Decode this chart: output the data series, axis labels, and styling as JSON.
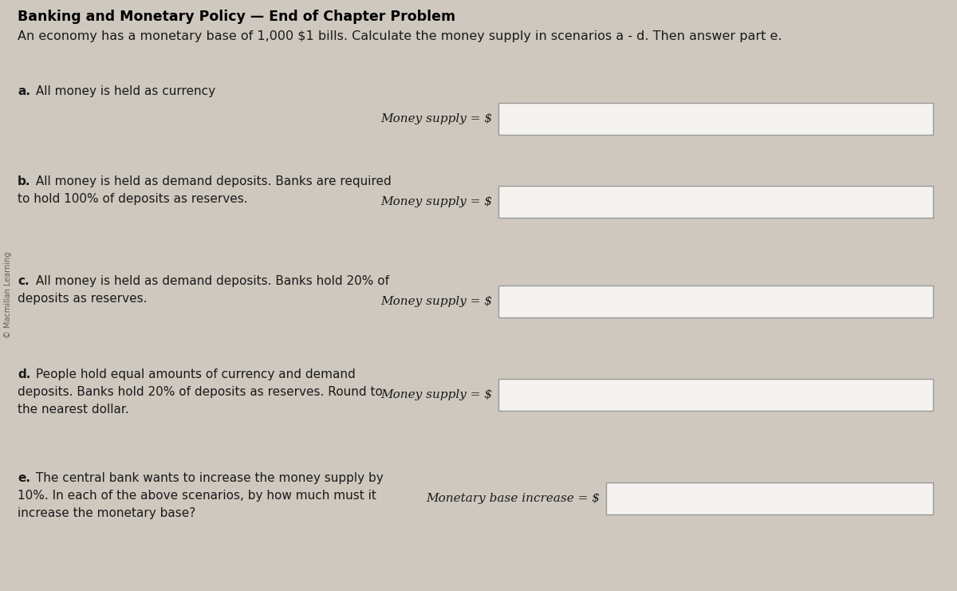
{
  "title": "Banking and Monetary Policy — End of Chapter Problem",
  "intro": "An economy has a monetary base of 1,000 $1 bills. Calculate the money supply in scenarios a - d. Then answer part e.",
  "bg_color": "#cec8bf",
  "section_a_label": "a.",
  "section_a_text": " All money is held as currency",
  "section_a_answer_label": "Money supply = $",
  "section_b_label": "b.",
  "section_b_line1": " All money is held as demand deposits. Banks are required",
  "section_b_line2": "to hold 100% of deposits as reserves.",
  "section_b_answer_label": "Money supply = $",
  "section_c_label": "c.",
  "section_c_line1": " All money is held as demand deposits. Banks hold 20% of",
  "section_c_line2": "deposits as reserves.",
  "section_c_answer_label": "Money supply = $",
  "section_d_label": "d.",
  "section_d_line1": " People hold equal amounts of currency and demand",
  "section_d_line2": "deposits. Banks hold 20% of deposits as reserves. Round to",
  "section_d_line3": "the nearest dollar.",
  "section_d_answer_label": "Money supply = $",
  "section_e_label": "e.",
  "section_e_line1": " The central bank wants to increase the money supply by",
  "section_e_line2": "10%. In each of the above scenarios, by how much must it",
  "section_e_line3": "increase the monetary base?",
  "section_e_answer_label": "Monetary base increase = $",
  "watermark": "© Macmillan Learning",
  "box_color": "#f5f3f0",
  "box_edge_color": "#999999",
  "text_color": "#1a1a1a",
  "title_color": "#000000",
  "title_fontsize": 12.5,
  "intro_fontsize": 11.5,
  "body_fontsize": 11.0,
  "answer_fontsize": 11.0
}
